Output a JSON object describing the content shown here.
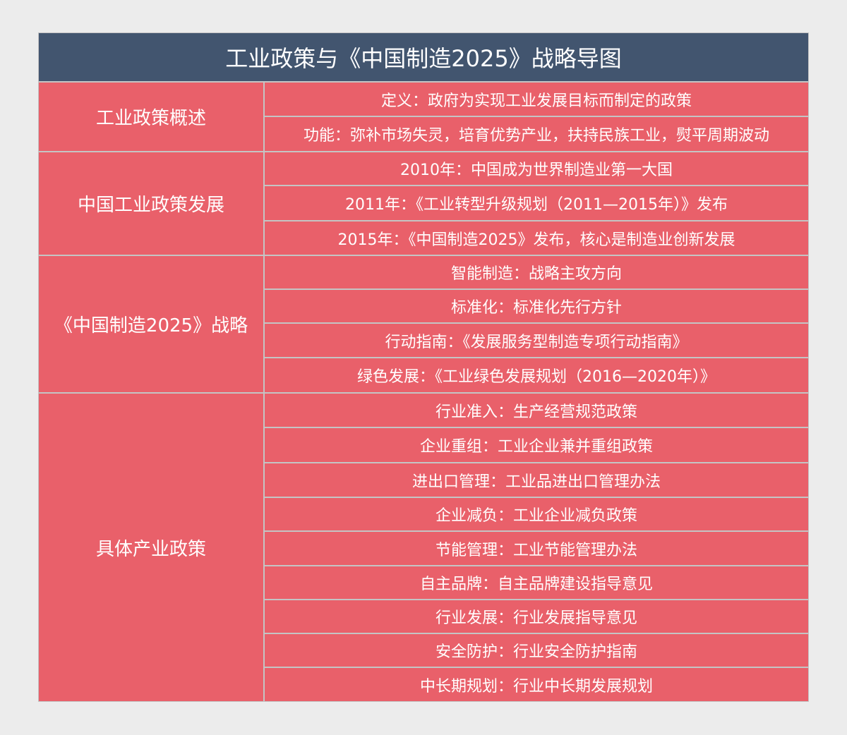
{
  "title": "工业政策与《中国制造2025》战略导图",
  "colors": {
    "title_bg": "#42556f",
    "cell_bg": "#e9606a",
    "border": "#c4c4c4",
    "page_bg": "#ececec"
  },
  "categories": [
    {
      "label": "工业政策概述",
      "items": [
        "定义：政府为实现工业发展目标而制定的政策",
        "功能：弥补市场失灵，培育优势产业，扶持民族工业，熨平周期波动"
      ]
    },
    {
      "label": "中国工业政策发展",
      "items": [
        "2010年：中国成为世界制造业第一大国",
        "2011年：《工业转型升级规划（2011—2015年）》发布",
        "2015年：《中国制造2025》发布，核心是制造业创新发展"
      ]
    },
    {
      "label": "《中国制造2025》战略",
      "items": [
        "智能制造：战略主攻方向",
        "标准化：标准化先行方针",
        "行动指南：《发展服务型制造专项行动指南》",
        "绿色发展：《工业绿色发展规划（2016—2020年）》"
      ]
    },
    {
      "label": "具体产业政策",
      "items": [
        "行业准入：生产经营规范政策",
        "企业重组：工业企业兼并重组政策",
        "进出口管理：工业品进出口管理办法",
        "企业减负：工业企业减负政策",
        "节能管理：工业节能管理办法",
        "自主品牌：自主品牌建设指导意见",
        "行业发展：行业发展指导意见",
        "安全防护：行业安全防护指南",
        "中长期规划：行业中长期发展规划"
      ]
    }
  ]
}
